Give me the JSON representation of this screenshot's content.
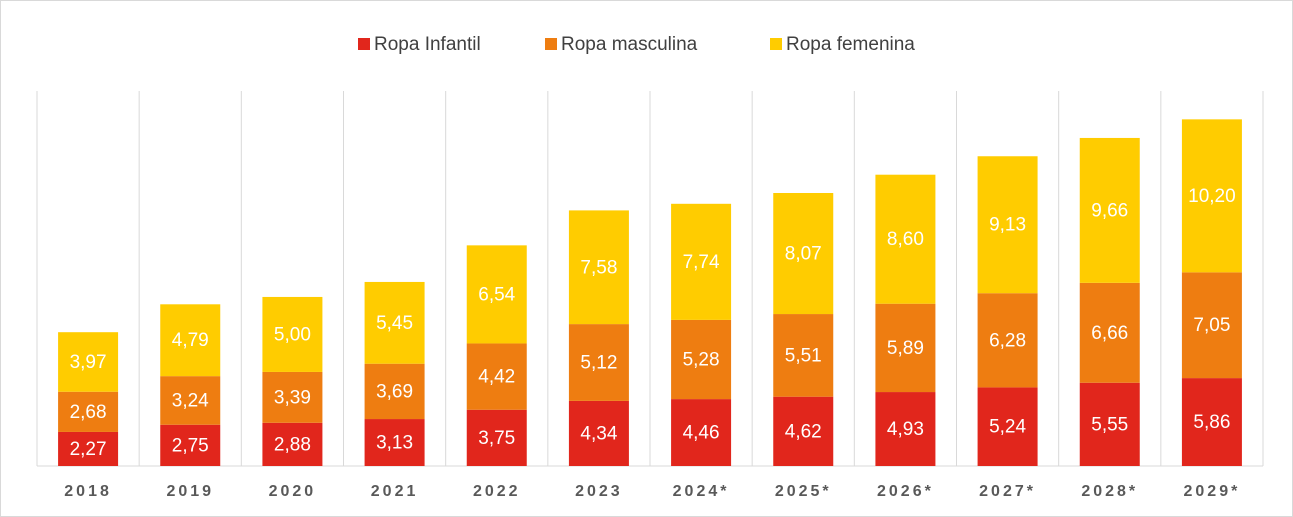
{
  "chart_data": {
    "type": "stacked_bar",
    "categories": [
      "2018",
      "2019",
      "2020",
      "2021",
      "2022",
      "2023",
      "2024*",
      "2025*",
      "2026*",
      "2027*",
      "2028*",
      "2029*"
    ],
    "series": [
      {
        "name": "Ropa Infantil",
        "color": "#e1261c",
        "values": [
          2.27,
          2.75,
          2.88,
          3.13,
          3.75,
          4.34,
          4.46,
          4.62,
          4.93,
          5.24,
          5.55,
          5.86
        ],
        "value_labels": [
          "2,27",
          "2,75",
          "2,88",
          "3,13",
          "3,75",
          "4,34",
          "4,46",
          "4,62",
          "4,93",
          "5,24",
          "5,55",
          "5,86"
        ]
      },
      {
        "name": "Ropa masculina",
        "color": "#ee7d11",
        "values": [
          2.68,
          3.24,
          3.39,
          3.69,
          4.42,
          5.12,
          5.28,
          5.51,
          5.89,
          6.28,
          6.66,
          7.05
        ],
        "value_labels": [
          "2,68",
          "3,24",
          "3,39",
          "3,69",
          "4,42",
          "5,12",
          "5,28",
          "5,51",
          "5,89",
          "6,28",
          "6,66",
          "7,05"
        ]
      },
      {
        "name": "Ropa femenina",
        "color": "#ffcc00",
        "values": [
          3.97,
          4.79,
          5.0,
          5.45,
          6.54,
          7.58,
          7.74,
          8.07,
          8.6,
          9.13,
          9.66,
          10.2
        ],
        "value_labels": [
          "3,97",
          "4,79",
          "5,00",
          "5,45",
          "6,54",
          "7,58",
          "7,74",
          "8,07",
          "8,60",
          "9,13",
          "9,66",
          "10,20"
        ]
      }
    ],
    "ylim": [
      0,
      25
    ],
    "legend": "top"
  }
}
